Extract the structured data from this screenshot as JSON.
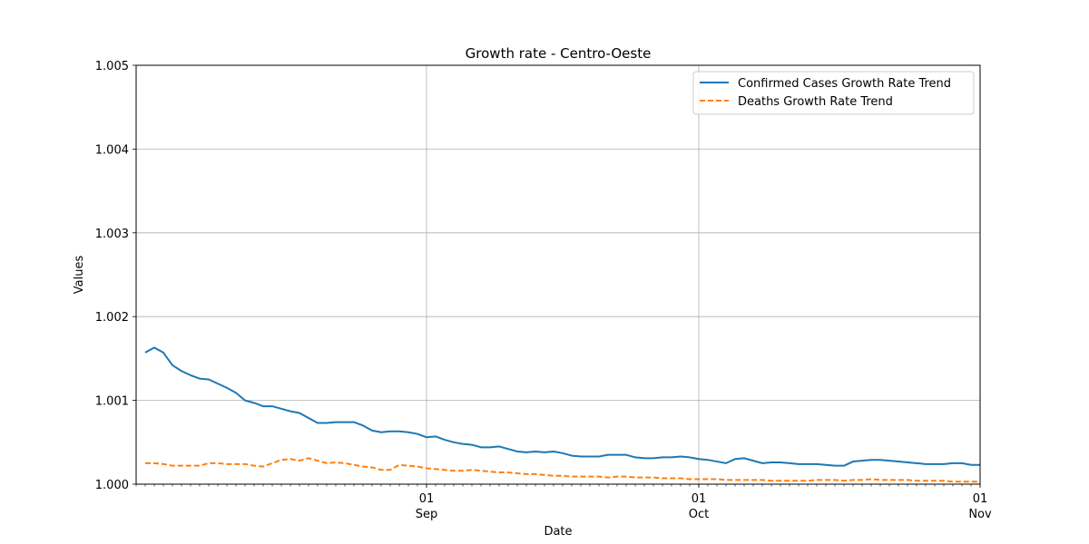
{
  "chart_data": {
    "type": "line",
    "title": "Growth rate - Centro-Oeste",
    "xlabel": "Date",
    "ylabel": "Values",
    "xlim": [
      "2020-07-31",
      "2020-11-01"
    ],
    "ylim": [
      1.0,
      1.005
    ],
    "grid": true,
    "legend_position": "top-right",
    "yticks": [
      {
        "value": 1.0,
        "label": "1.000"
      },
      {
        "value": 1.001,
        "label": "1.001"
      },
      {
        "value": 1.002,
        "label": "1.002"
      },
      {
        "value": 1.003,
        "label": "1.003"
      },
      {
        "value": 1.004,
        "label": "1.004"
      },
      {
        "value": 1.005,
        "label": "1.005"
      }
    ],
    "xticks": [
      {
        "date": "2020-09-01",
        "day": "01",
        "month": "Sep"
      },
      {
        "date": "2020-10-01",
        "day": "01",
        "month": "Oct"
      },
      {
        "date": "2020-11-01",
        "day": "01",
        "month": "Nov"
      }
    ],
    "x": [
      "2020-08-01",
      "2020-08-02",
      "2020-08-03",
      "2020-08-04",
      "2020-08-05",
      "2020-08-06",
      "2020-08-07",
      "2020-08-08",
      "2020-08-09",
      "2020-08-10",
      "2020-08-11",
      "2020-08-12",
      "2020-08-13",
      "2020-08-14",
      "2020-08-15",
      "2020-08-16",
      "2020-08-17",
      "2020-08-18",
      "2020-08-19",
      "2020-08-20",
      "2020-08-21",
      "2020-08-22",
      "2020-08-23",
      "2020-08-24",
      "2020-08-25",
      "2020-08-26",
      "2020-08-27",
      "2020-08-28",
      "2020-08-29",
      "2020-08-30",
      "2020-08-31",
      "2020-09-01",
      "2020-09-02",
      "2020-09-03",
      "2020-09-04",
      "2020-09-05",
      "2020-09-06",
      "2020-09-07",
      "2020-09-08",
      "2020-09-09",
      "2020-09-10",
      "2020-09-11",
      "2020-09-12",
      "2020-09-13",
      "2020-09-14",
      "2020-09-15",
      "2020-09-16",
      "2020-09-17",
      "2020-09-18",
      "2020-09-19",
      "2020-09-20",
      "2020-09-21",
      "2020-09-22",
      "2020-09-23",
      "2020-09-24",
      "2020-09-25",
      "2020-09-26",
      "2020-09-27",
      "2020-09-28",
      "2020-09-29",
      "2020-09-30",
      "2020-10-01",
      "2020-10-02",
      "2020-10-03",
      "2020-10-04",
      "2020-10-05",
      "2020-10-06",
      "2020-10-07",
      "2020-10-08",
      "2020-10-09",
      "2020-10-10",
      "2020-10-11",
      "2020-10-12",
      "2020-10-13",
      "2020-10-14",
      "2020-10-15",
      "2020-10-16",
      "2020-10-17",
      "2020-10-18",
      "2020-10-19",
      "2020-10-20",
      "2020-10-21",
      "2020-10-22",
      "2020-10-23",
      "2020-10-24",
      "2020-10-25",
      "2020-10-26",
      "2020-10-27",
      "2020-10-28",
      "2020-10-29",
      "2020-10-30",
      "2020-10-31",
      "2020-11-01"
    ],
    "series": [
      {
        "name": "Confirmed Cases Growth Rate Trend",
        "color": "#1f77b4",
        "style": "solid",
        "values": [
          1.00157,
          1.00163,
          1.00157,
          1.00142,
          1.00135,
          1.0013,
          1.00126,
          1.00125,
          1.0012,
          1.00115,
          1.00109,
          1.001,
          1.00097,
          1.00093,
          1.00093,
          1.0009,
          1.00087,
          1.00085,
          1.00079,
          1.00073,
          1.00073,
          1.00074,
          1.00074,
          1.00074,
          1.0007,
          1.00064,
          1.00062,
          1.00063,
          1.00063,
          1.00062,
          1.0006,
          1.00056,
          1.00057,
          1.00053,
          1.0005,
          1.00048,
          1.00047,
          1.00044,
          1.00044,
          1.00045,
          1.00042,
          1.00039,
          1.00038,
          1.00039,
          1.00038,
          1.00039,
          1.00037,
          1.00034,
          1.00033,
          1.00033,
          1.00033,
          1.00035,
          1.00035,
          1.00035,
          1.00032,
          1.00031,
          1.00031,
          1.00032,
          1.00032,
          1.00033,
          1.00032,
          1.0003,
          1.00029,
          1.00027,
          1.00025,
          1.0003,
          1.00031,
          1.00028,
          1.00025,
          1.00026,
          1.00026,
          1.00025,
          1.00024,
          1.00024,
          1.00024,
          1.00023,
          1.00022,
          1.00022,
          1.00027,
          1.00028,
          1.00029,
          1.00029,
          1.00028,
          1.00027,
          1.00026,
          1.00025,
          1.00024,
          1.00024,
          1.00024,
          1.00025,
          1.00025,
          1.00023,
          1.00023
        ]
      },
      {
        "name": "Deaths Growth Rate Trend",
        "color": "#ff7f0e",
        "style": "dashed",
        "values": [
          1.00025,
          1.00025,
          1.00024,
          1.00022,
          1.00022,
          1.00022,
          1.00022,
          1.00025,
          1.00025,
          1.00024,
          1.00024,
          1.00024,
          1.00022,
          1.00021,
          1.00025,
          1.00029,
          1.0003,
          1.00028,
          1.00031,
          1.00028,
          1.00025,
          1.00026,
          1.00025,
          1.00023,
          1.00021,
          1.0002,
          1.00017,
          1.00017,
          1.00023,
          1.00022,
          1.00021,
          1.00019,
          1.00018,
          1.00017,
          1.00016,
          1.00016,
          1.00017,
          1.00016,
          1.00015,
          1.00014,
          1.00014,
          1.00013,
          1.00012,
          1.00012,
          1.00011,
          1.0001,
          1.0001,
          1.00009,
          1.00009,
          1.00009,
          1.00009,
          1.00008,
          1.00009,
          1.00009,
          1.00008,
          1.00008,
          1.00008,
          1.00007,
          1.00007,
          1.00007,
          1.00006,
          1.00006,
          1.00006,
          1.00006,
          1.00005,
          1.00005,
          1.00005,
          1.00005,
          1.00005,
          1.00004,
          1.00004,
          1.00004,
          1.00004,
          1.00004,
          1.00005,
          1.00005,
          1.00005,
          1.00004,
          1.00005,
          1.00005,
          1.00006,
          1.00005,
          1.00005,
          1.00005,
          1.00005,
          1.00004,
          1.00004,
          1.00004,
          1.00004,
          1.00003,
          1.00003,
          1.00003,
          1.00003
        ]
      }
    ]
  }
}
